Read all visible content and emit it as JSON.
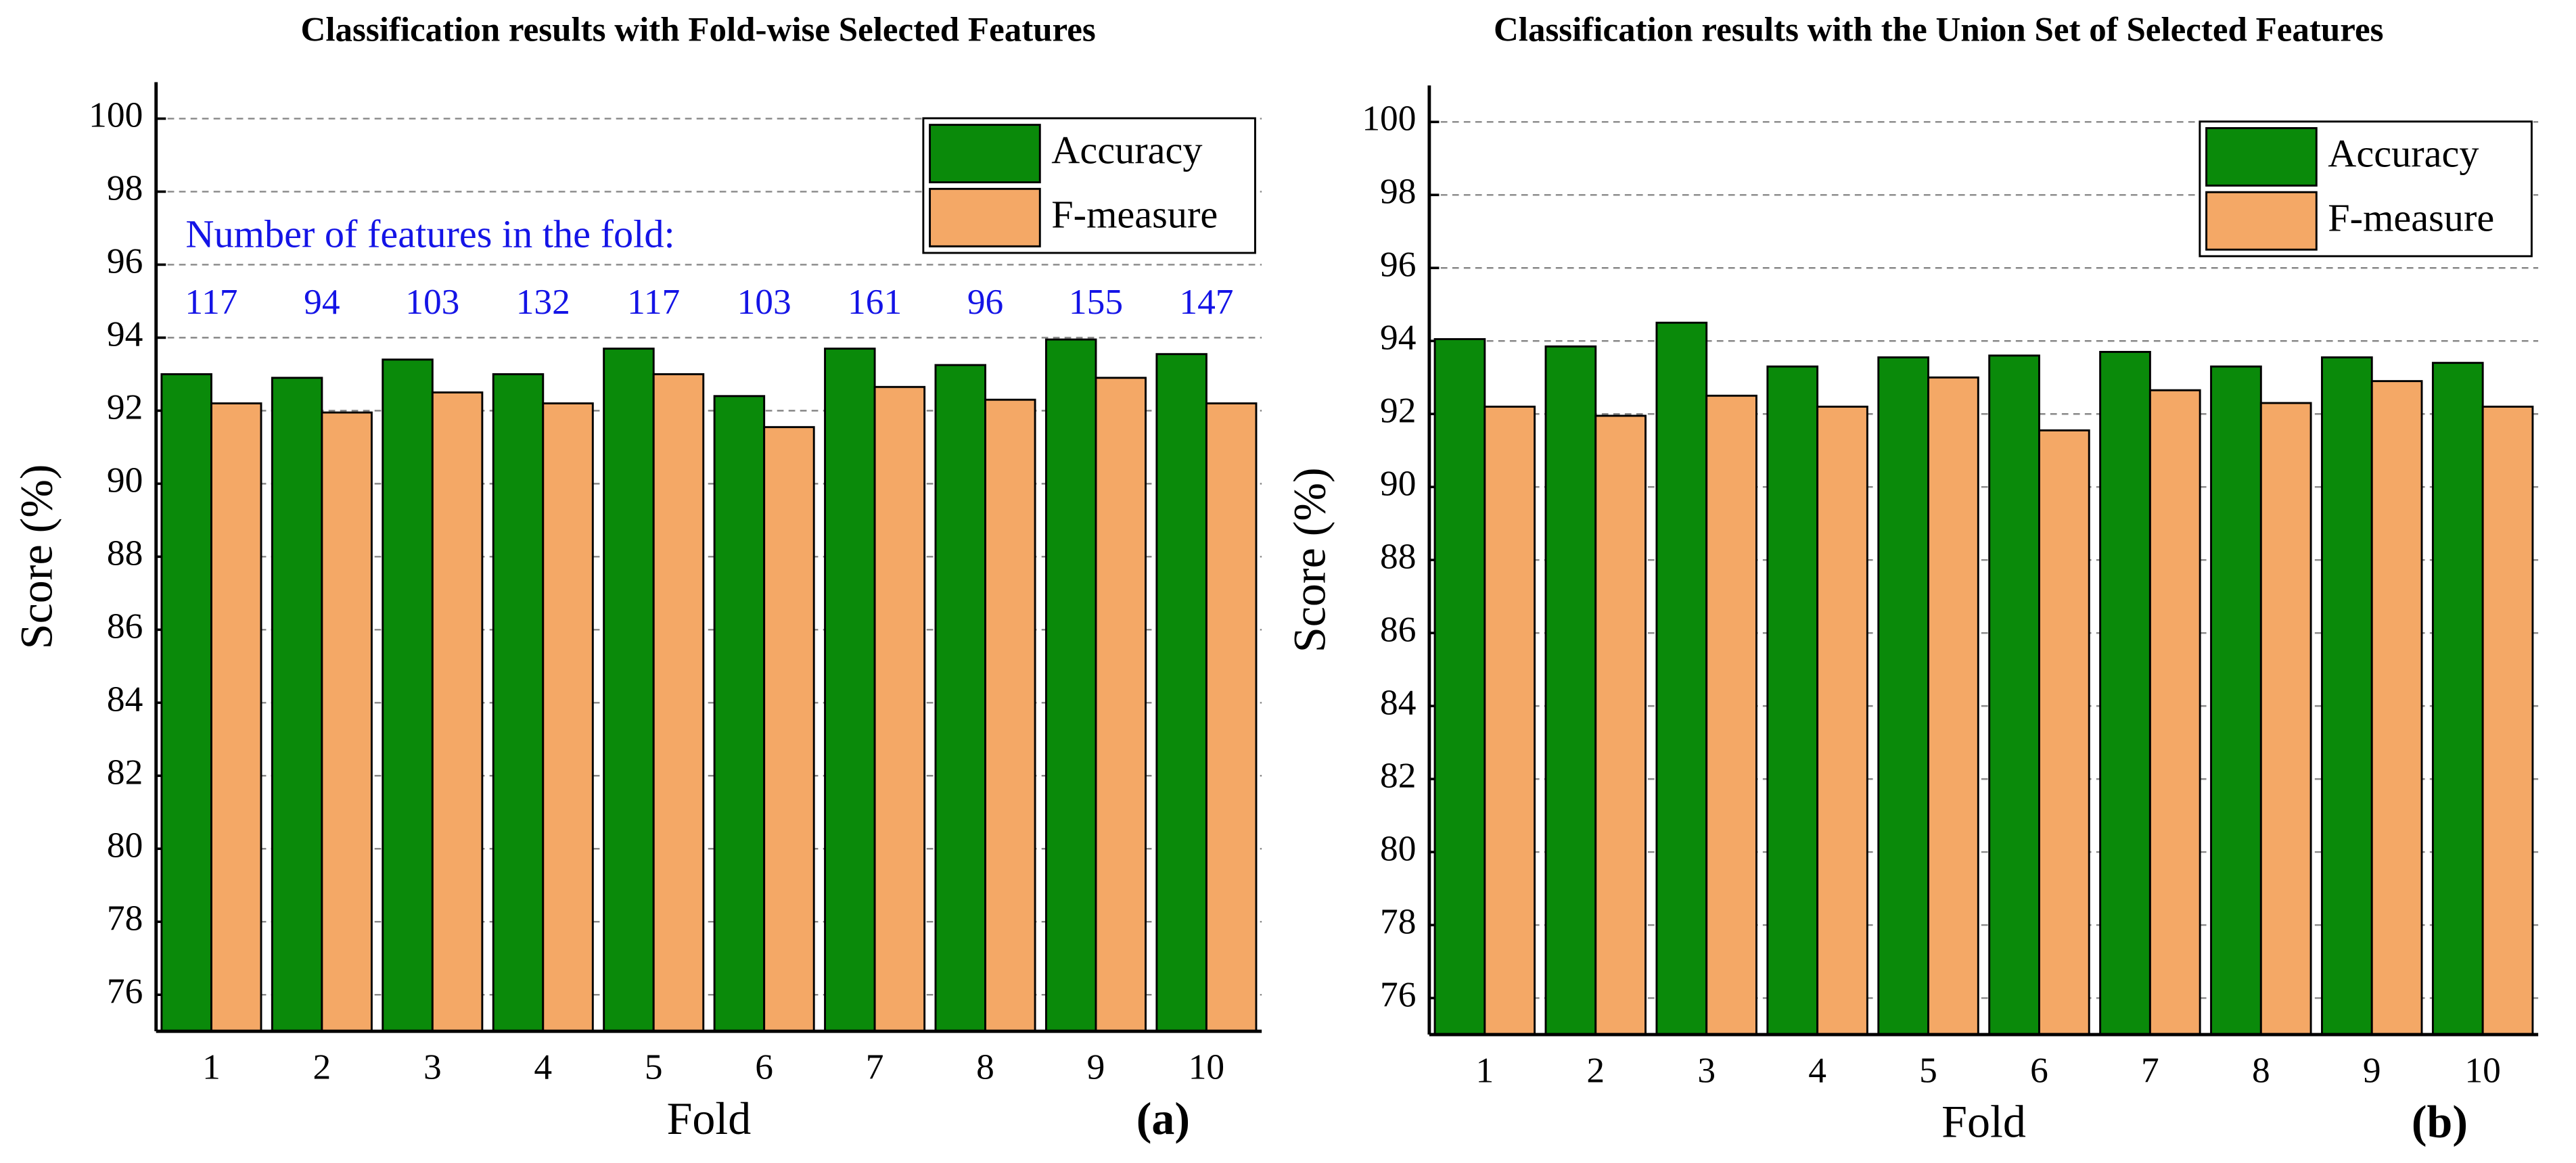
{
  "chart_data": [
    {
      "type": "bar",
      "title": "Classification results with Fold-wise Selected Features",
      "xlabel": "Fold",
      "ylabel": "Score (%)",
      "panel_label": "(a)",
      "categories": [
        "1",
        "2",
        "3",
        "4",
        "5",
        "6",
        "7",
        "8",
        "9",
        "10"
      ],
      "series": [
        {
          "name": "Accuracy",
          "color": "#0a8a0a",
          "values": [
            93.0,
            92.9,
            93.4,
            93.0,
            93.7,
            92.4,
            93.7,
            93.25,
            93.95,
            93.55
          ]
        },
        {
          "name": "F-measure",
          "color": "#f4a866",
          "values": [
            92.2,
            91.95,
            92.5,
            92.2,
            93.0,
            91.55,
            92.65,
            92.3,
            92.9,
            92.2
          ]
        }
      ],
      "annotation": "Number of features in the fold:",
      "feature_counts": [
        117,
        94,
        103,
        132,
        117,
        103,
        161,
        96,
        155,
        147
      ],
      "ylim": [
        75,
        101
      ],
      "yticks": [
        76,
        78,
        80,
        82,
        84,
        86,
        88,
        90,
        92,
        94,
        96,
        98,
        100
      ],
      "grid": true,
      "legend": "upper right"
    },
    {
      "type": "bar",
      "title": "Classification results with the Union Set of Selected Features",
      "xlabel": "Fold",
      "ylabel": "Score (%)",
      "panel_label": "(b)",
      "categories": [
        "1",
        "2",
        "3",
        "4",
        "5",
        "6",
        "7",
        "8",
        "9",
        "10"
      ],
      "series": [
        {
          "name": "Accuracy",
          "color": "#0a8a0a",
          "values": [
            94.05,
            93.85,
            94.5,
            93.3,
            93.55,
            93.6,
            93.7,
            93.3,
            93.55,
            93.4
          ]
        },
        {
          "name": "F-measure",
          "color": "#f4a866",
          "values": [
            92.2,
            91.95,
            92.5,
            92.2,
            93.0,
            91.55,
            92.65,
            92.3,
            92.9,
            92.2
          ]
        }
      ],
      "ylim": [
        75,
        101
      ],
      "yticks": [
        76,
        78,
        80,
        82,
        84,
        86,
        88,
        90,
        92,
        94,
        96,
        98,
        100
      ],
      "grid": true,
      "legend": "upper right"
    }
  ]
}
